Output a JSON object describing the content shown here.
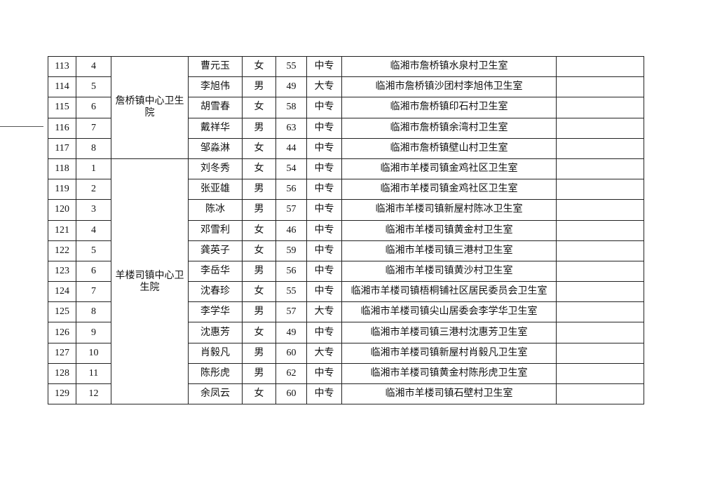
{
  "groups": [
    {
      "unit": "詹桥镇中心卫生院",
      "rows": [
        {
          "no": "113",
          "sub": "4",
          "name": "曹元玉",
          "gender": "女",
          "age": "55",
          "edu": "中专",
          "workplace": "临湘市詹桥镇水泉村卫生室",
          "note": ""
        },
        {
          "no": "114",
          "sub": "5",
          "name": "李旭伟",
          "gender": "男",
          "age": "49",
          "edu": "大专",
          "workplace": "临湘市詹桥镇沙团村李旭伟卫生室",
          "note": ""
        },
        {
          "no": "115",
          "sub": "6",
          "name": "胡雪春",
          "gender": "女",
          "age": "58",
          "edu": "中专",
          "workplace": "临湘市詹桥镇印石村卫生室",
          "note": ""
        },
        {
          "no": "116",
          "sub": "7",
          "name": "戴祥华",
          "gender": "男",
          "age": "63",
          "edu": "中专",
          "workplace": "临湘市詹桥镇余湾村卫生室",
          "note": ""
        },
        {
          "no": "117",
          "sub": "8",
          "name": "邹淼淋",
          "gender": "女",
          "age": "44",
          "edu": "中专",
          "workplace": "临湘市詹桥镇壁山村卫生室",
          "note": ""
        }
      ]
    },
    {
      "unit": "羊楼司镇中心卫生院",
      "rows": [
        {
          "no": "118",
          "sub": "1",
          "name": "刘冬秀",
          "gender": "女",
          "age": "54",
          "edu": "中专",
          "workplace": "临湘市羊楼司镇金鸡社区卫生室",
          "note": ""
        },
        {
          "no": "119",
          "sub": "2",
          "name": "张亚雄",
          "gender": "男",
          "age": "56",
          "edu": "中专",
          "workplace": "临湘市羊楼司镇金鸡社区卫生室",
          "note": ""
        },
        {
          "no": "120",
          "sub": "3",
          "name": "陈冰",
          "gender": "男",
          "age": "57",
          "edu": "中专",
          "workplace": "临湘市羊楼司镇新屋村陈冰卫生室",
          "note": ""
        },
        {
          "no": "121",
          "sub": "4",
          "name": "邓雪利",
          "gender": "女",
          "age": "46",
          "edu": "中专",
          "workplace": "临湘市羊楼司镇黄金村卫生室",
          "note": ""
        },
        {
          "no": "122",
          "sub": "5",
          "name": "龚英子",
          "gender": "女",
          "age": "59",
          "edu": "中专",
          "workplace": "临湘市羊楼司镇三港村卫生室",
          "note": ""
        },
        {
          "no": "123",
          "sub": "6",
          "name": "李岳华",
          "gender": "男",
          "age": "56",
          "edu": "中专",
          "workplace": "临湘市羊楼司镇黄沙村卫生室",
          "note": ""
        },
        {
          "no": "124",
          "sub": "7",
          "name": "沈春珍",
          "gender": "女",
          "age": "55",
          "edu": "中专",
          "workplace": "临湘市羊楼司镇梧桐铺社区居民委员会卫生室",
          "note": ""
        },
        {
          "no": "125",
          "sub": "8",
          "name": "李学华",
          "gender": "男",
          "age": "57",
          "edu": "大专",
          "workplace": "临湘市羊楼司镇尖山居委会李学华卫生室",
          "note": ""
        },
        {
          "no": "126",
          "sub": "9",
          "name": "沈惠芳",
          "gender": "女",
          "age": "49",
          "edu": "中专",
          "workplace": "临湘市羊楼司镇三港村沈惠芳卫生室",
          "note": ""
        },
        {
          "no": "127",
          "sub": "10",
          "name": "肖毅凡",
          "gender": "男",
          "age": "60",
          "edu": "大专",
          "workplace": "临湘市羊楼司镇新屋村肖毅凡卫生室",
          "note": ""
        },
        {
          "no": "128",
          "sub": "11",
          "name": "陈彤虎",
          "gender": "男",
          "age": "62",
          "edu": "中专",
          "workplace": "临湘市羊楼司镇黄金村陈彤虎卫生室",
          "note": ""
        },
        {
          "no": "129",
          "sub": "12",
          "name": "余凤云",
          "gender": "女",
          "age": "60",
          "edu": "中专",
          "workplace": "临湘市羊楼司镇石壁村卫生室",
          "note": ""
        }
      ]
    }
  ]
}
